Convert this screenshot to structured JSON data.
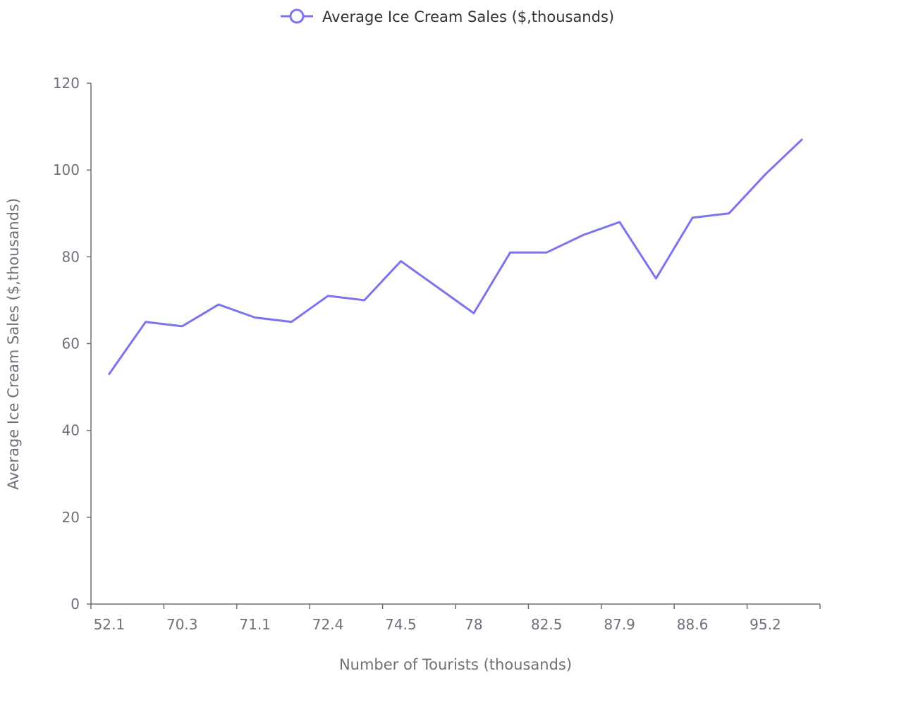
{
  "chart_data": {
    "type": "line",
    "categories": [
      "52.1",
      "",
      "70.3",
      "",
      "71.1",
      "",
      "72.4",
      "",
      "74.5",
      "",
      "78",
      "",
      "82.5",
      "",
      "87.9",
      "",
      "88.6",
      "",
      "95.2",
      ""
    ],
    "series": [
      {
        "name": "Average Ice Cream Sales ($,thousands)",
        "color": "#7b73f0",
        "values": [
          53,
          65,
          64,
          69,
          66,
          65,
          71,
          70,
          79,
          73,
          67,
          81,
          81,
          85,
          88,
          75,
          89,
          90,
          99,
          107
        ]
      }
    ],
    "xlabel": "Number of Tourists (thousands)",
    "ylabel": "Average Ice Cream Sales ($,thousands)",
    "ylim": [
      0,
      120
    ],
    "yticks": [
      0,
      20,
      40,
      60,
      80,
      100,
      120
    ],
    "grid": false,
    "legend_position": "top-center"
  }
}
